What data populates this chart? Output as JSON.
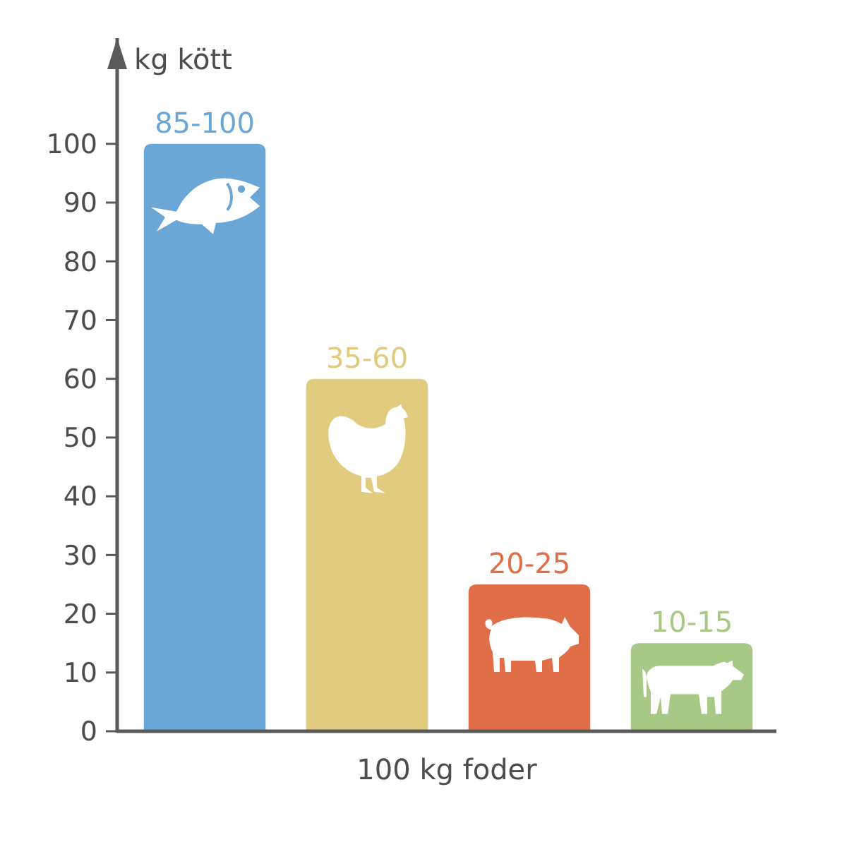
{
  "chart_data": {
    "type": "bar",
    "xlabel": "100 kg foder",
    "ylabel": "kg kött",
    "categories": [
      null,
      null,
      null,
      null
    ],
    "values": [
      100,
      60,
      25,
      15
    ],
    "colors": [
      "#6aa6d6",
      "#e0cb7e",
      "#e06e48",
      "#a8c985"
    ],
    "value_labels": [
      "85-100",
      "35-60",
      "20-25",
      "10-15"
    ],
    "ylim": [
      0,
      118
    ],
    "yticks": [
      0,
      10,
      20,
      30,
      40,
      50,
      60,
      70,
      80,
      90,
      100
    ],
    "grid": false
  }
}
